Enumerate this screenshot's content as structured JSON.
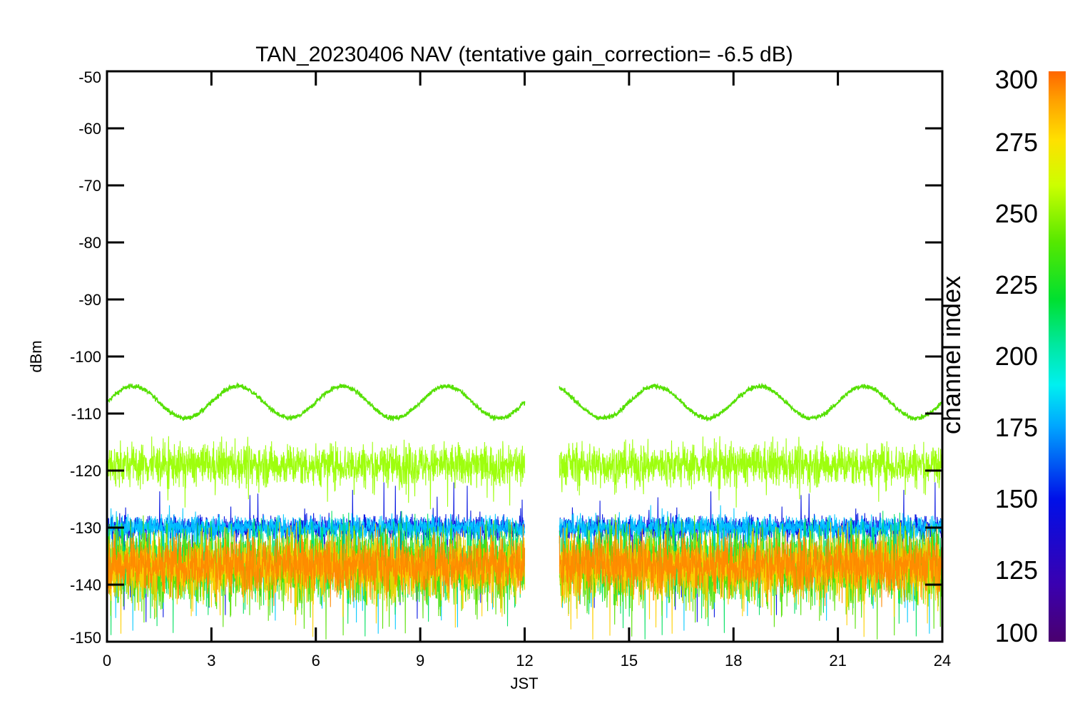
{
  "chart_data": {
    "type": "line",
    "title": "TAN_20230406 NAV (tentative gain_correction= -6.5 dB)",
    "xlabel": "JST",
    "ylabel": "dBm",
    "xlim": [
      0,
      24
    ],
    "ylim": [
      -150,
      -50
    ],
    "xticks": [
      "0",
      "3",
      "6",
      "9",
      "12",
      "15",
      "18",
      "21",
      "24"
    ],
    "yticks": [
      "-50",
      "-60",
      "-70",
      "-80",
      "-90",
      "-100",
      "-110",
      "-120",
      "-130",
      "-140",
      "-150"
    ],
    "data_gap_jst": [
      12.0,
      13.0
    ],
    "colorbar": {
      "label": "channel index",
      "range": [
        100,
        300
      ],
      "ticks": [
        "300",
        "275",
        "250",
        "225",
        "200",
        "175",
        "150",
        "125",
        "100"
      ],
      "colormap": "rainbow"
    },
    "series": [
      {
        "channel_index": 240,
        "color": "#55e000",
        "mean_dBm": -108,
        "amplitude_dB": 2.8,
        "period_hours": 3.0,
        "noise_dB": 0.4,
        "phase_peak_jst": 0.75
      },
      {
        "channel_index": 258,
        "color": "#99ff00",
        "mean_dBm": -119,
        "spread_dB": 3.5,
        "spike_range_dBm": [
          -127,
          -114
        ]
      },
      {
        "channel_index": 150,
        "color": "#0010e0",
        "mean_dBm": -130,
        "spread_dB": 2.0,
        "spike_range_dBm": [
          -147,
          -122
        ]
      },
      {
        "channel_index": 170,
        "color": "#00c8ff",
        "mean_dBm": -130,
        "spread_dB": 2.0,
        "spike_range_dBm": [
          -149,
          -126
        ]
      },
      {
        "channel_index": 205,
        "color": "#00e060",
        "mean_dBm": -136,
        "spread_dB": 6.0,
        "spike_range_dBm": [
          -150,
          -127
        ]
      },
      {
        "channel_index": 245,
        "color": "#55e000",
        "mean_dBm": -137,
        "spread_dB": 6.5,
        "spike_range_dBm": [
          -150,
          -128
        ]
      },
      {
        "channel_index": 275,
        "color": "#ffd000",
        "mean_dBm": -137,
        "spread_dB": 5.5,
        "spike_range_dBm": [
          -150,
          -129
        ]
      },
      {
        "channel_index": 290,
        "color": "#ff8800",
        "mean_dBm": -136.5,
        "spread_dB": 4.5,
        "spike_range_dBm": [
          -144,
          -129
        ]
      }
    ],
    "legend": "colorbar-right",
    "grid": false
  }
}
